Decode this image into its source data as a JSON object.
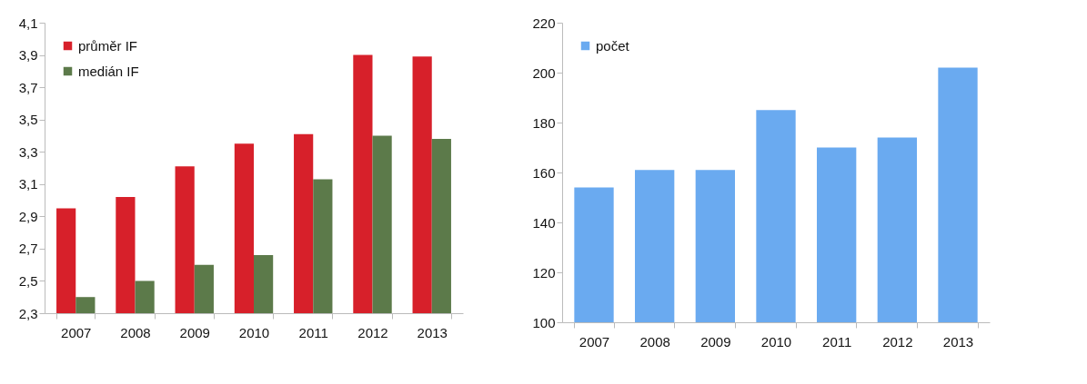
{
  "chart_data": [
    {
      "type": "bar",
      "categories": [
        "2007",
        "2008",
        "2009",
        "2010",
        "2011",
        "2012",
        "2013"
      ],
      "series": [
        {
          "name": "průměr IF",
          "color": "#d7202a",
          "values": [
            2.95,
            3.02,
            3.21,
            3.35,
            3.41,
            3.9,
            3.89
          ]
        },
        {
          "name": "medián IF",
          "color": "#5c7a4a",
          "values": [
            2.4,
            2.5,
            2.6,
            2.66,
            3.13,
            3.4,
            3.38
          ]
        }
      ],
      "ylim": [
        2.3,
        4.1
      ],
      "yticks": [
        {
          "value": 2.3,
          "label": "2,3"
        },
        {
          "value": 2.5,
          "label": "2,5"
        },
        {
          "value": 2.7,
          "label": "2,7"
        },
        {
          "value": 2.9,
          "label": "2,9"
        },
        {
          "value": 3.1,
          "label": "3,1"
        },
        {
          "value": 3.3,
          "label": "3,3"
        },
        {
          "value": 3.5,
          "label": "3,5"
        },
        {
          "value": 3.7,
          "label": "3,7"
        },
        {
          "value": 3.9,
          "label": "3,9"
        },
        {
          "value": 4.1,
          "label": "4,1"
        }
      ],
      "grid": false,
      "legend": "top left"
    },
    {
      "type": "bar",
      "categories": [
        "2007",
        "2008",
        "2009",
        "2010",
        "2011",
        "2012",
        "2013"
      ],
      "series": [
        {
          "name": "počet",
          "color": "#6aaaf0",
          "values": [
            154,
            161,
            161,
            185,
            170,
            174,
            202
          ]
        }
      ],
      "ylim": [
        100,
        220
      ],
      "yticks": [
        100,
        120,
        140,
        160,
        180,
        200,
        220
      ],
      "grid": false,
      "legend": "top left"
    }
  ]
}
